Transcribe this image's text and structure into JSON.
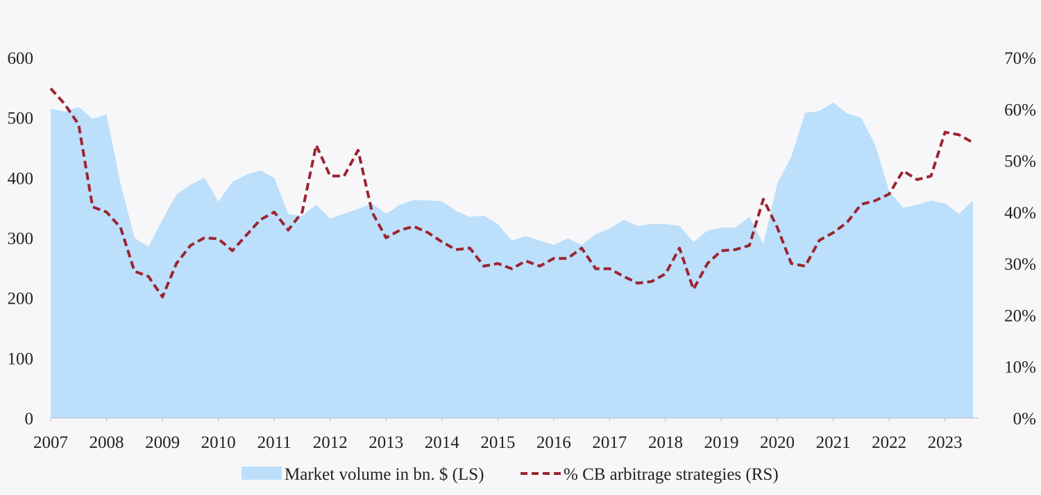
{
  "chart_data": {
    "type": "area",
    "title": "",
    "xlabel": "",
    "ylabel": "",
    "x_range": [
      2007,
      2023.6
    ],
    "ylim_left": [
      0,
      600
    ],
    "ylim_right": [
      0,
      70
    ],
    "left_ticks": [
      "0",
      "100",
      "200",
      "300",
      "400",
      "500",
      "600"
    ],
    "right_ticks": [
      "0%",
      "10%",
      "20%",
      "30%",
      "40%",
      "50%",
      "60%",
      "70%"
    ],
    "x_ticks": [
      "2007",
      "2008",
      "2009",
      "2010",
      "2011",
      "2012",
      "2013",
      "2014",
      "2015",
      "2016",
      "2017",
      "2018",
      "2019",
      "2020",
      "2021",
      "2022",
      "2023"
    ],
    "legend_position": "bottom",
    "grid": false,
    "colors": {
      "area": "#bcdffb",
      "line": "#9b2430",
      "background": "#f7f7f9"
    },
    "series": [
      {
        "name": "Market volume in bn. $ (LS)",
        "axis": "left",
        "type": "area",
        "x": [
          2007.0,
          2007.25,
          2007.5,
          2007.75,
          2008.0,
          2008.25,
          2008.5,
          2008.75,
          2009.0,
          2009.25,
          2009.5,
          2009.75,
          2010.0,
          2010.25,
          2010.5,
          2010.75,
          2011.0,
          2011.25,
          2011.5,
          2011.75,
          2012.0,
          2012.25,
          2012.5,
          2012.75,
          2013.0,
          2013.25,
          2013.5,
          2013.75,
          2014.0,
          2014.25,
          2014.5,
          2014.75,
          2015.0,
          2015.25,
          2015.5,
          2015.75,
          2016.0,
          2016.25,
          2016.5,
          2016.75,
          2017.0,
          2017.25,
          2017.5,
          2017.75,
          2018.0,
          2018.25,
          2018.5,
          2018.75,
          2019.0,
          2019.25,
          2019.5,
          2019.75,
          2020.0,
          2020.25,
          2020.5,
          2020.75,
          2021.0,
          2021.25,
          2021.5,
          2021.75,
          2022.0,
          2022.25,
          2022.5,
          2022.75,
          2023.0,
          2023.25,
          2023.5
        ],
        "values": [
          515,
          510,
          518,
          498,
          505,
          390,
          300,
          285,
          330,
          372,
          388,
          400,
          360,
          393,
          405,
          412,
          400,
          340,
          336,
          355,
          332,
          340,
          348,
          357,
          340,
          355,
          363,
          362,
          361,
          345,
          335,
          337,
          323,
          295,
          303,
          295,
          288,
          299,
          288,
          306,
          315,
          330,
          320,
          323,
          323,
          320,
          293,
          312,
          317,
          317,
          335,
          290,
          390,
          435,
          508,
          511,
          525,
          507,
          500,
          455,
          378,
          350,
          355,
          362,
          357,
          340,
          362
        ]
      },
      {
        "name": "% CB arbitrage strategies (RS)",
        "axis": "right",
        "type": "line",
        "style": "dashed",
        "x": [
          2007.0,
          2007.25,
          2007.5,
          2007.75,
          2008.0,
          2008.25,
          2008.5,
          2008.75,
          2009.0,
          2009.25,
          2009.5,
          2009.75,
          2010.0,
          2010.25,
          2010.5,
          2010.75,
          2011.0,
          2011.25,
          2011.5,
          2011.75,
          2012.0,
          2012.25,
          2012.5,
          2012.75,
          2013.0,
          2013.25,
          2013.5,
          2013.75,
          2014.0,
          2014.25,
          2014.5,
          2014.75,
          2015.0,
          2015.25,
          2015.5,
          2015.75,
          2016.0,
          2016.25,
          2016.5,
          2016.75,
          2017.0,
          2017.25,
          2017.5,
          2017.75,
          2018.0,
          2018.25,
          2018.5,
          2018.75,
          2019.0,
          2019.25,
          2019.5,
          2019.75,
          2020.0,
          2020.25,
          2020.5,
          2020.75,
          2021.0,
          2021.25,
          2021.5,
          2021.75,
          2022.0,
          2022.25,
          2022.5,
          2022.75,
          2023.0,
          2023.25,
          2023.5
        ],
        "values": [
          64,
          61,
          57,
          41,
          40,
          37,
          28.5,
          27.5,
          23.5,
          30,
          33.5,
          35,
          34.8,
          32.5,
          35.5,
          38.5,
          40,
          36.5,
          40,
          53,
          47,
          47,
          52,
          40,
          35,
          36.5,
          37.2,
          36,
          34.2,
          32.7,
          33,
          29.5,
          30,
          29,
          30.5,
          29.5,
          31,
          31,
          33,
          29,
          29,
          27.5,
          26.2,
          26.5,
          28,
          33,
          25,
          30,
          32.5,
          32.7,
          33.5,
          42.5,
          37,
          30,
          29.5,
          34.5,
          36,
          38,
          41.5,
          42.2,
          43.5,
          48,
          46.3,
          47,
          55.5,
          55,
          53.5
        ]
      }
    ]
  }
}
